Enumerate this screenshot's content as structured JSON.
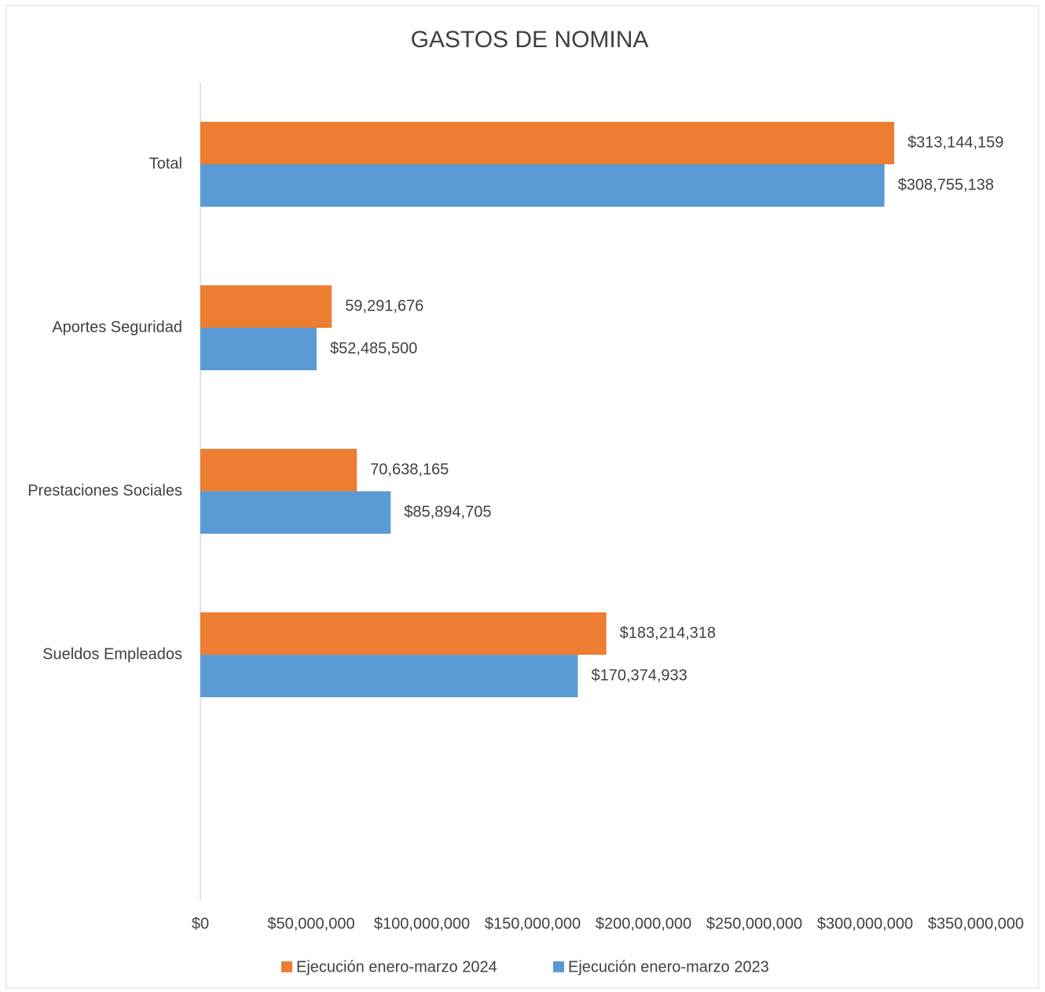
{
  "chart_data": {
    "type": "hbar",
    "title": "GASTOS DE NOMINA",
    "categories": [
      "Total",
      "Aportes Seguridad",
      "Prestaciones Sociales",
      "Sueldos Empleados",
      null
    ],
    "series": [
      {
        "name": "Ejecución enero-marzo 2024",
        "color": "#ed7d31",
        "values": [
          313144159,
          59291676,
          70638165,
          183214318,
          null
        ],
        "value_labels": [
          "$313,144,159",
          "59,291,676",
          "70,638,165",
          "$183,214,318",
          null
        ]
      },
      {
        "name": "Ejecución enero-marzo 2023",
        "color": "#5b9bd5",
        "values": [
          308755138,
          52485500,
          85894705,
          170374933,
          null
        ],
        "value_labels": [
          "$308,755,138",
          "$52,485,500",
          "$85,894,705",
          "$170,374,933",
          null
        ]
      }
    ],
    "xlim": [
      0,
      350000000
    ],
    "xticks": [
      {
        "value": 0,
        "label": "$0"
      },
      {
        "value": 50000000,
        "label": "$50,000,000"
      },
      {
        "value": 100000000,
        "label": "$100,000,000"
      },
      {
        "value": 150000000,
        "label": "$150,000,000"
      },
      {
        "value": 200000000,
        "label": "$200,000,000"
      },
      {
        "value": 250000000,
        "label": "$250,000,000"
      },
      {
        "value": 300000000,
        "label": "$300,000,000"
      },
      {
        "value": 350000000,
        "label": "$350,000,000"
      }
    ],
    "grid": false,
    "legend": "bottom"
  }
}
